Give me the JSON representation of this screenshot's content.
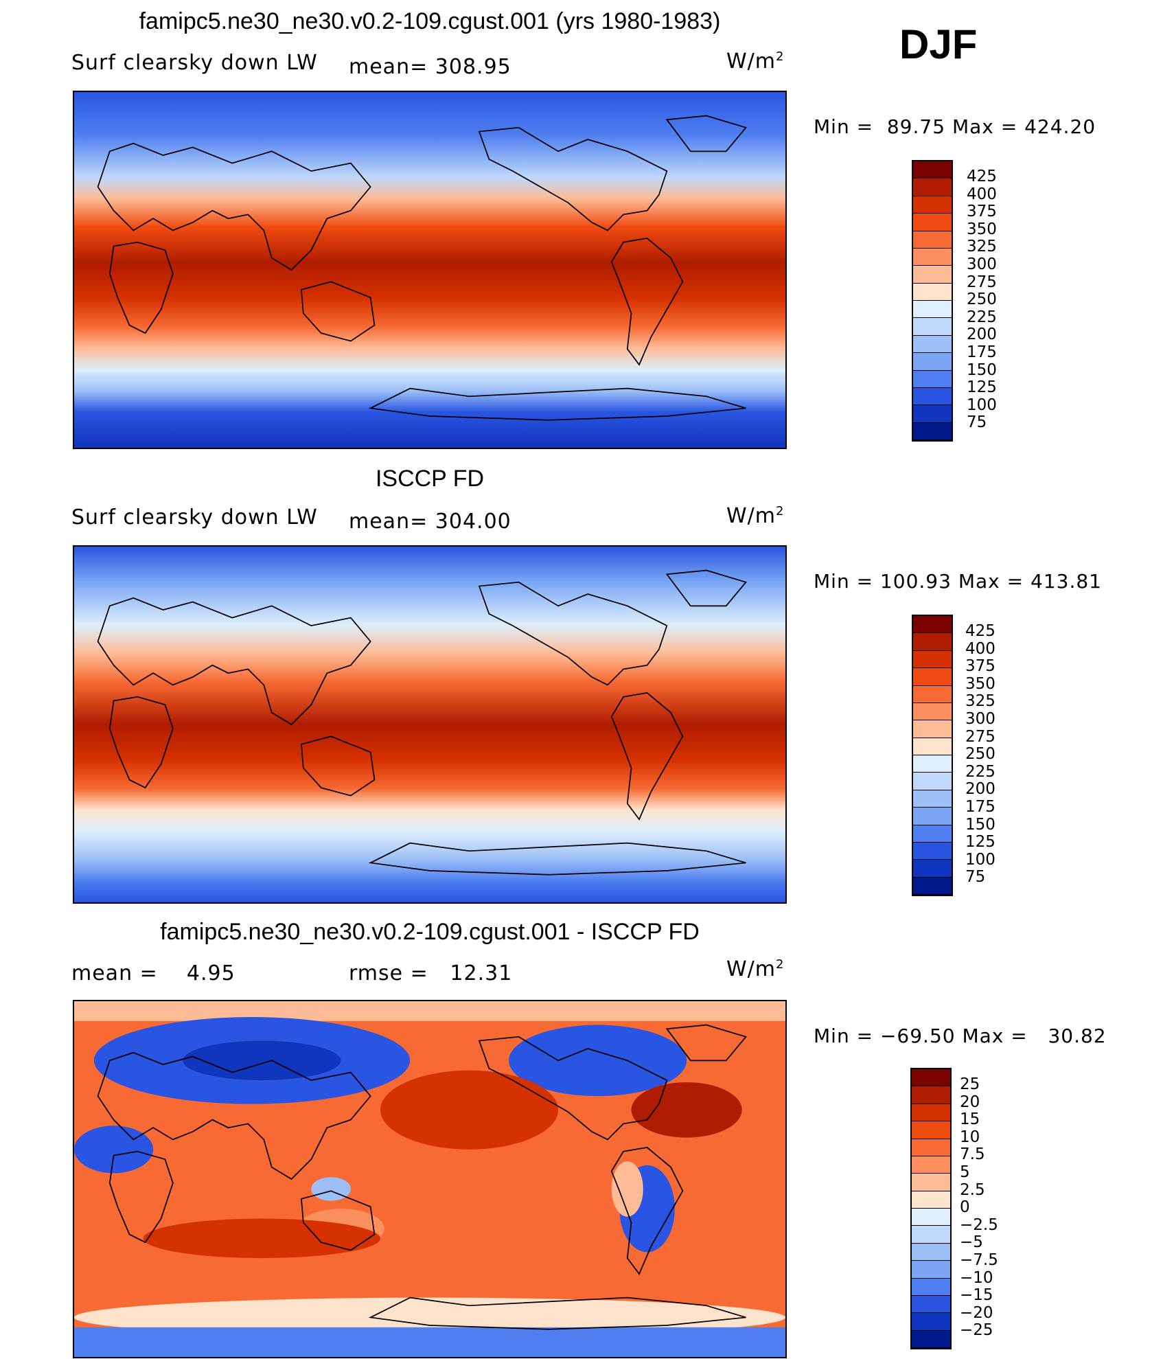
{
  "header": {
    "model_title": "famipc5.ne30_ne30.v0.2-109.cgust.001 (yrs 1980-1983)",
    "season": "DJF"
  },
  "panels": [
    {
      "id": "model",
      "variable": "Surf clearsky down LW",
      "stat_label": "mean=",
      "stat_value": "308.95",
      "units_base": "W/m",
      "units_exp": "2",
      "min_label": "Min =",
      "min_value": "89.75",
      "max_label": "Max =",
      "max_value": "424.20",
      "colorbar_ticks": [
        "425",
        "400",
        "375",
        "350",
        "325",
        "300",
        "275",
        "250",
        "225",
        "200",
        "175",
        "150",
        "125",
        "100",
        "75"
      ]
    },
    {
      "id": "obs",
      "title": "ISCCP FD",
      "variable": "Surf clearsky down LW",
      "stat_label": "mean=",
      "stat_value": "304.00",
      "units_base": "W/m",
      "units_exp": "2",
      "min_label": "Min =",
      "min_value": "100.93",
      "max_label": "Max =",
      "max_value": "413.81",
      "colorbar_ticks": [
        "425",
        "400",
        "375",
        "350",
        "325",
        "300",
        "275",
        "250",
        "225",
        "200",
        "175",
        "150",
        "125",
        "100",
        "75"
      ]
    },
    {
      "id": "diff",
      "title": "famipc5.ne30_ne30.v0.2-109.cgust.001 - ISCCP FD",
      "mean_label": "mean =",
      "mean_value": "4.95",
      "rmse_label": "rmse =",
      "rmse_value": "12.31",
      "units_base": "W/m",
      "units_exp": "2",
      "min_label": "Min =",
      "min_value": "−69.50",
      "max_label": "Max =",
      "max_value": "30.82",
      "colorbar_ticks": [
        "25",
        "20",
        "15",
        "10",
        "7.5",
        "5",
        "2.5",
        "0",
        "−2.5",
        "−5",
        "−7.5",
        "−10",
        "−15",
        "−20",
        "−25"
      ]
    }
  ],
  "colors": {
    "seq16": [
      "#7b0000",
      "#b01c00",
      "#d63100",
      "#f04b10",
      "#f76a33",
      "#fb8f5e",
      "#fdbb96",
      "#fee3cc",
      "#deeefc",
      "#bfd8fb",
      "#9dbff7",
      "#7aa6f5",
      "#4f7ef0",
      "#2a55e2",
      "#1035bf",
      "#001a8c"
    ],
    "diff16": [
      "#7b0000",
      "#b01c00",
      "#d63100",
      "#f04b10",
      "#f76a33",
      "#fb8f5e",
      "#fdbb96",
      "#fee3cc",
      "#deeefc",
      "#bfd8fb",
      "#9dbff7",
      "#7aa6f5",
      "#4f7ef0",
      "#2a55e2",
      "#1035bf",
      "#001a8c"
    ]
  }
}
